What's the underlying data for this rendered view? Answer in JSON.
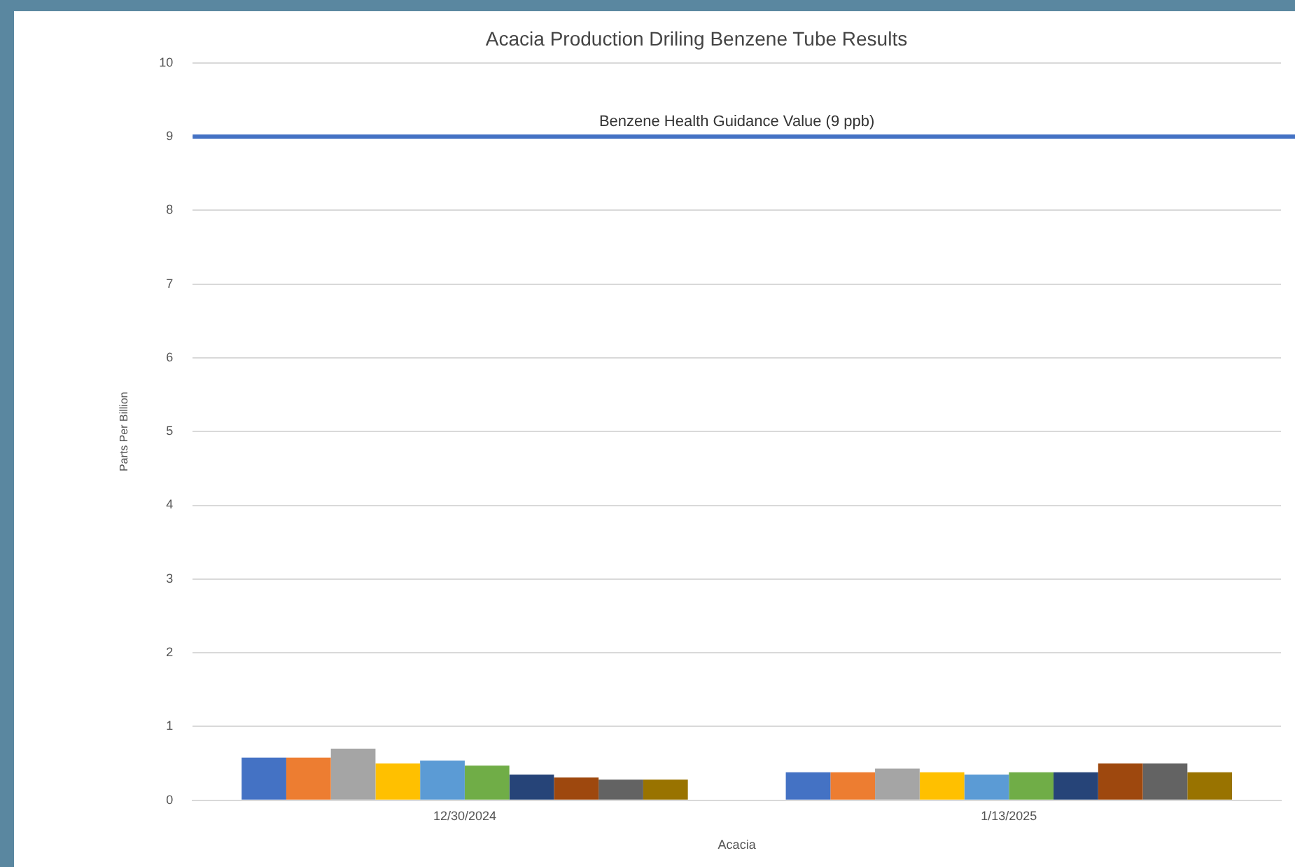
{
  "chart_data": {
    "type": "bar",
    "title": "Acacia Production Driling Benzene Tube Results",
    "xlabel": "Acacia",
    "ylabel": "Parts Per Billion",
    "categories": [
      "12/30/2024",
      "1/13/2025"
    ],
    "series": [
      {
        "color": "#4472c4",
        "values": [
          0.58,
          0.38
        ]
      },
      {
        "color": "#ed7d31",
        "values": [
          0.58,
          0.38
        ]
      },
      {
        "color": "#a5a5a5",
        "values": [
          0.7,
          0.43
        ]
      },
      {
        "color": "#ffc000",
        "values": [
          0.5,
          0.38
        ]
      },
      {
        "color": "#5b9bd5",
        "values": [
          0.54,
          0.35
        ]
      },
      {
        "color": "#70ad47",
        "values": [
          0.47,
          0.38
        ]
      },
      {
        "color": "#264478",
        "values": [
          0.35,
          0.38
        ]
      },
      {
        "color": "#9e480e",
        "values": [
          0.31,
          0.5
        ]
      },
      {
        "color": "#636363",
        "values": [
          0.28,
          0.5
        ]
      },
      {
        "color": "#997300",
        "values": [
          0.28,
          0.38
        ]
      }
    ],
    "ylim": [
      0,
      10
    ],
    "yticks": [
      0,
      1,
      2,
      3,
      4,
      5,
      6,
      7,
      8,
      9,
      10
    ],
    "grid": "y",
    "legend": false,
    "ref_lines": [
      {
        "axis": "y",
        "value": 9,
        "label": "Benzene Health Guidance Value (9 ppb)",
        "color": "#4472c4"
      }
    ]
  }
}
